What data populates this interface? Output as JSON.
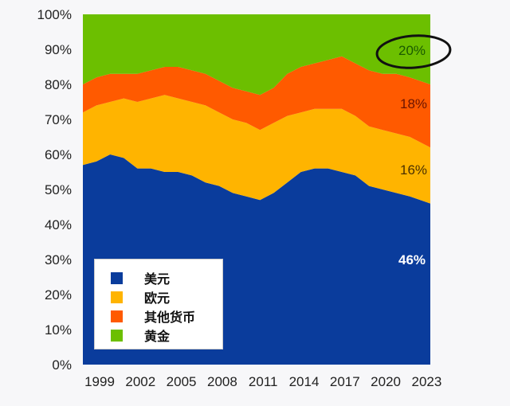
{
  "chart_data": {
    "type": "area",
    "stacked": true,
    "title": "",
    "xlabel": "",
    "ylabel": "",
    "xlim": [
      1999,
      2024.5
    ],
    "ylim": [
      0,
      100
    ],
    "x_ticks": [
      "1999",
      "2002",
      "2005",
      "2008",
      "2011",
      "2014",
      "2017",
      "2020",
      "2023"
    ],
    "y_ticks": [
      "0%",
      "10%",
      "20%",
      "30%",
      "40%",
      "50%",
      "60%",
      "70%",
      "80%",
      "90%",
      "100%"
    ],
    "x": [
      1999,
      2000,
      2001,
      2002,
      2003,
      2004,
      2005,
      2006,
      2007,
      2008,
      2009,
      2010,
      2011,
      2012,
      2013,
      2014,
      2015,
      2016,
      2017,
      2018,
      2019,
      2020,
      2021,
      2022,
      2023,
      2024.5
    ],
    "series": [
      {
        "name": "美元",
        "color": "#0a3c9c",
        "values": [
          57,
          58,
          60,
          59,
          56,
          56,
          55,
          55,
          54,
          52,
          51,
          49,
          48,
          47,
          49,
          52,
          55,
          56,
          56,
          55,
          54,
          51,
          50,
          49,
          48,
          46
        ]
      },
      {
        "name": "欧元",
        "color": "#ffb400",
        "values": [
          15,
          16,
          15,
          17,
          19,
          20,
          22,
          21,
          21,
          22,
          21,
          21,
          21,
          20,
          20,
          19,
          17,
          17,
          17,
          18,
          17,
          17,
          17,
          17,
          17,
          16
        ]
      },
      {
        "name": "其他货币",
        "color": "#ff5a00",
        "values": [
          8,
          8,
          8,
          7,
          8,
          8,
          8,
          9,
          9,
          9,
          9,
          9,
          9,
          10,
          10,
          12,
          13,
          13,
          14,
          15,
          15,
          16,
          16,
          17,
          17,
          18
        ]
      },
      {
        "name": "黄金",
        "color": "#6cbf00",
        "values": [
          20,
          18,
          17,
          17,
          17,
          16,
          15,
          15,
          16,
          17,
          19,
          21,
          22,
          23,
          21,
          17,
          15,
          14,
          13,
          12,
          14,
          16,
          17,
          17,
          18,
          20
        ]
      }
    ],
    "legend_position": "bottom-left",
    "annotations": [
      {
        "series": "黄金",
        "label": "20%",
        "color": "#1a5a00",
        "circled": true
      },
      {
        "series": "其他货币",
        "label": "18%",
        "color": "#6b1400"
      },
      {
        "series": "欧元",
        "label": "16%",
        "color": "#4a3000"
      },
      {
        "series": "美元",
        "label": "46%",
        "color": "#ffffff"
      }
    ]
  }
}
